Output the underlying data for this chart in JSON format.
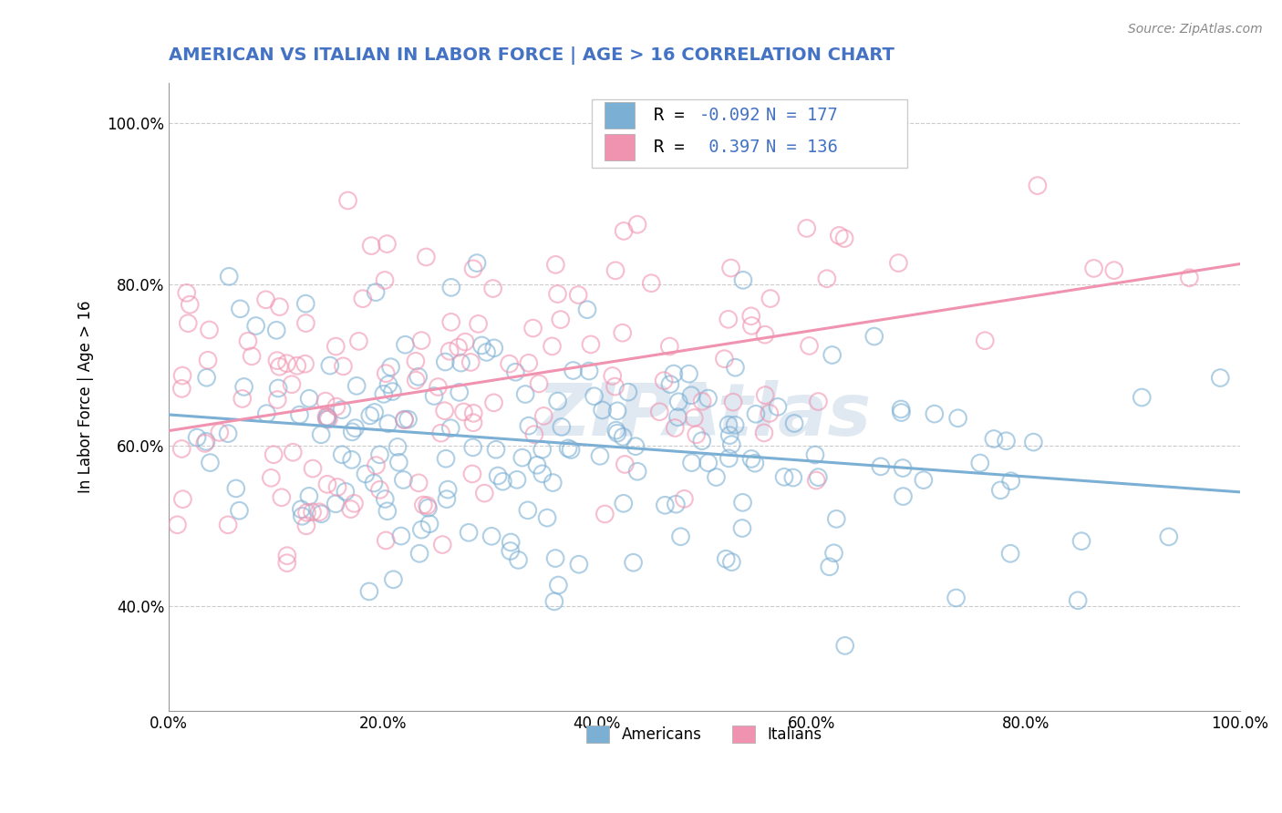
{
  "title": "AMERICAN VS ITALIAN IN LABOR FORCE | AGE > 16 CORRELATION CHART",
  "source_text": "Source: ZipAtlas.com",
  "ylabel": "In Labor Force | Age > 16",
  "xlim": [
    0.0,
    1.0
  ],
  "ylim": [
    0.27,
    1.05
  ],
  "x_ticks": [
    0.0,
    0.2,
    0.4,
    0.6,
    0.8,
    1.0
  ],
  "x_tick_labels": [
    "0.0%",
    "20.0%",
    "40.0%",
    "60.0%",
    "80.0%",
    "100.0%"
  ],
  "y_ticks": [
    0.4,
    0.6,
    0.8,
    1.0
  ],
  "y_tick_labels": [
    "40.0%",
    "60.0%",
    "80.0%",
    "100.0%"
  ],
  "american_color": "#7bafd4",
  "italian_color": "#f093b0",
  "american_R": -0.092,
  "american_N": 177,
  "italian_R": 0.397,
  "italian_N": 136,
  "american_line_start_x": 0.0,
  "american_line_start_y": 0.638,
  "american_line_end_x": 1.0,
  "american_line_end_y": 0.542,
  "italian_line_start_x": 0.0,
  "italian_line_start_y": 0.618,
  "italian_line_end_x": 1.0,
  "italian_line_end_y": 0.825,
  "watermark": "ZIPAtlas",
  "background_color": "#ffffff",
  "grid_color": "#cccccc",
  "title_color": "#4472c4",
  "legend_color": "#4472c4",
  "american_label": "Americans",
  "italian_label": "Italians"
}
